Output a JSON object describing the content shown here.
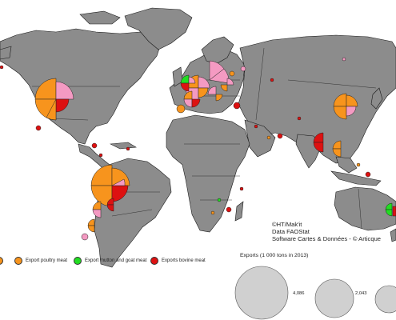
{
  "credits": {
    "line1": "©HT/Mak'it",
    "line2": "Data FAOStat",
    "line3": "Software Cartes & Données - © Articque"
  },
  "legend": {
    "items": [
      {
        "label": "",
        "color": "#F7941D"
      },
      {
        "label": "Export  poultry meat",
        "color": "#F7941D"
      },
      {
        "label": "Export mutton and goat meat",
        "color": "#22DD22"
      },
      {
        "label": "Exports bovine meat",
        "color": "#DD1111"
      }
    ],
    "pork_color": "#F49AC2"
  },
  "size_legend": {
    "title": "Exports (1 000 tons in 2013)",
    "values": [
      "4,086",
      "2,043"
    ]
  },
  "colors": {
    "land": "#8C8C8C",
    "border": "#1a1a1a",
    "water": "#ffffff"
  }
}
